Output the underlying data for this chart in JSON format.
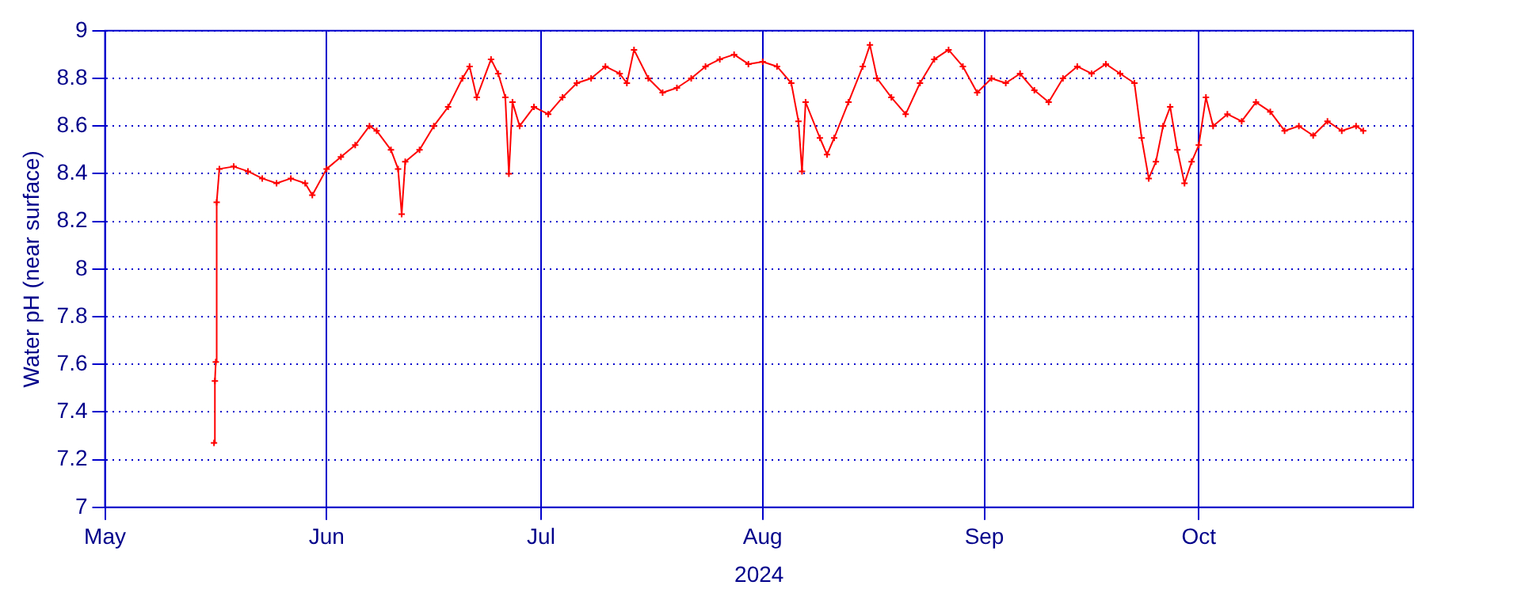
{
  "chart_data": {
    "type": "line",
    "xlabel": "2024",
    "ylabel": "Water pH (near surface)",
    "xlim": [
      "2024-05-01",
      "2024-10-31"
    ],
    "xticks": [
      {
        "value": "2024-05-01",
        "label": "May"
      },
      {
        "value": "2024-06-01",
        "label": "Jun"
      },
      {
        "value": "2024-07-01",
        "label": "Jul"
      },
      {
        "value": "2024-08-01",
        "label": "Aug"
      },
      {
        "value": "2024-09-01",
        "label": "Sep"
      },
      {
        "value": "2024-10-01",
        "label": "Oct"
      }
    ],
    "ylim": [
      7,
      9
    ],
    "yticks": [
      7,
      7.2,
      7.4,
      7.6,
      7.8,
      8,
      8.2,
      8.4,
      8.6,
      8.8,
      9
    ],
    "grid": true,
    "marker": "cross",
    "line_style": "solid",
    "x": [
      "2024-05-16T06:00",
      "2024-05-16T09:00",
      "2024-05-16T12:00",
      "2024-05-16T15:00",
      "2024-05-17",
      "2024-05-19",
      "2024-05-21",
      "2024-05-23",
      "2024-05-25",
      "2024-05-27",
      "2024-05-29",
      "2024-05-30",
      "2024-06-01",
      "2024-06-03",
      "2024-06-05",
      "2024-06-07",
      "2024-06-08",
      "2024-06-10",
      "2024-06-11",
      "2024-06-11T12:00",
      "2024-06-12",
      "2024-06-14",
      "2024-06-16",
      "2024-06-18",
      "2024-06-20",
      "2024-06-21",
      "2024-06-22",
      "2024-06-24",
      "2024-06-25",
      "2024-06-26",
      "2024-06-26T12:00",
      "2024-06-27",
      "2024-06-28",
      "2024-06-30",
      "2024-07-02",
      "2024-07-04",
      "2024-07-06",
      "2024-07-08",
      "2024-07-10",
      "2024-07-12",
      "2024-07-13",
      "2024-07-14",
      "2024-07-16",
      "2024-07-18",
      "2024-07-20",
      "2024-07-22",
      "2024-07-24",
      "2024-07-26",
      "2024-07-28",
      "2024-07-30",
      "2024-08-01",
      "2024-08-03",
      "2024-08-05",
      "2024-08-06",
      "2024-08-06T12:00",
      "2024-08-07",
      "2024-08-09",
      "2024-08-10",
      "2024-08-11",
      "2024-08-13",
      "2024-08-15",
      "2024-08-16",
      "2024-08-17",
      "2024-08-19",
      "2024-08-21",
      "2024-08-23",
      "2024-08-25",
      "2024-08-27",
      "2024-08-29",
      "2024-08-31",
      "2024-09-02",
      "2024-09-04",
      "2024-09-06",
      "2024-09-08",
      "2024-09-10",
      "2024-09-12",
      "2024-09-14",
      "2024-09-16",
      "2024-09-18",
      "2024-09-20",
      "2024-09-22",
      "2024-09-23",
      "2024-09-24",
      "2024-09-25",
      "2024-09-26",
      "2024-09-27",
      "2024-09-28",
      "2024-09-29",
      "2024-09-30",
      "2024-10-01",
      "2024-10-02",
      "2024-10-03",
      "2024-10-05",
      "2024-10-07",
      "2024-10-09",
      "2024-10-11",
      "2024-10-13",
      "2024-10-15",
      "2024-10-17",
      "2024-10-19",
      "2024-10-21",
      "2024-10-23",
      "2024-10-24"
    ],
    "series": [
      {
        "color": "#ff0000",
        "values": [
          7.27,
          7.53,
          7.61,
          8.28,
          8.42,
          8.43,
          8.41,
          8.38,
          8.36,
          8.38,
          8.36,
          8.31,
          8.42,
          8.47,
          8.52,
          8.6,
          8.58,
          8.5,
          8.42,
          8.23,
          8.45,
          8.5,
          8.6,
          8.68,
          8.8,
          8.85,
          8.72,
          8.88,
          8.82,
          8.72,
          8.4,
          8.7,
          8.6,
          8.68,
          8.65,
          8.72,
          8.78,
          8.8,
          8.85,
          8.82,
          8.78,
          8.92,
          8.8,
          8.74,
          8.76,
          8.8,
          8.85,
          8.88,
          8.9,
          8.86,
          8.87,
          8.85,
          8.78,
          8.62,
          8.41,
          8.7,
          8.55,
          8.48,
          8.55,
          8.7,
          8.85,
          8.94,
          8.8,
          8.72,
          8.65,
          8.78,
          8.88,
          8.92,
          8.85,
          8.74,
          8.8,
          8.78,
          8.82,
          8.75,
          8.7,
          8.8,
          8.85,
          8.82,
          8.86,
          8.82,
          8.78,
          8.55,
          8.38,
          8.45,
          8.6,
          8.68,
          8.5,
          8.36,
          8.45,
          8.52,
          8.72,
          8.6,
          8.65,
          8.62,
          8.7,
          8.66,
          8.58,
          8.6,
          8.56,
          8.62,
          8.58,
          8.6,
          8.58
        ]
      }
    ]
  }
}
